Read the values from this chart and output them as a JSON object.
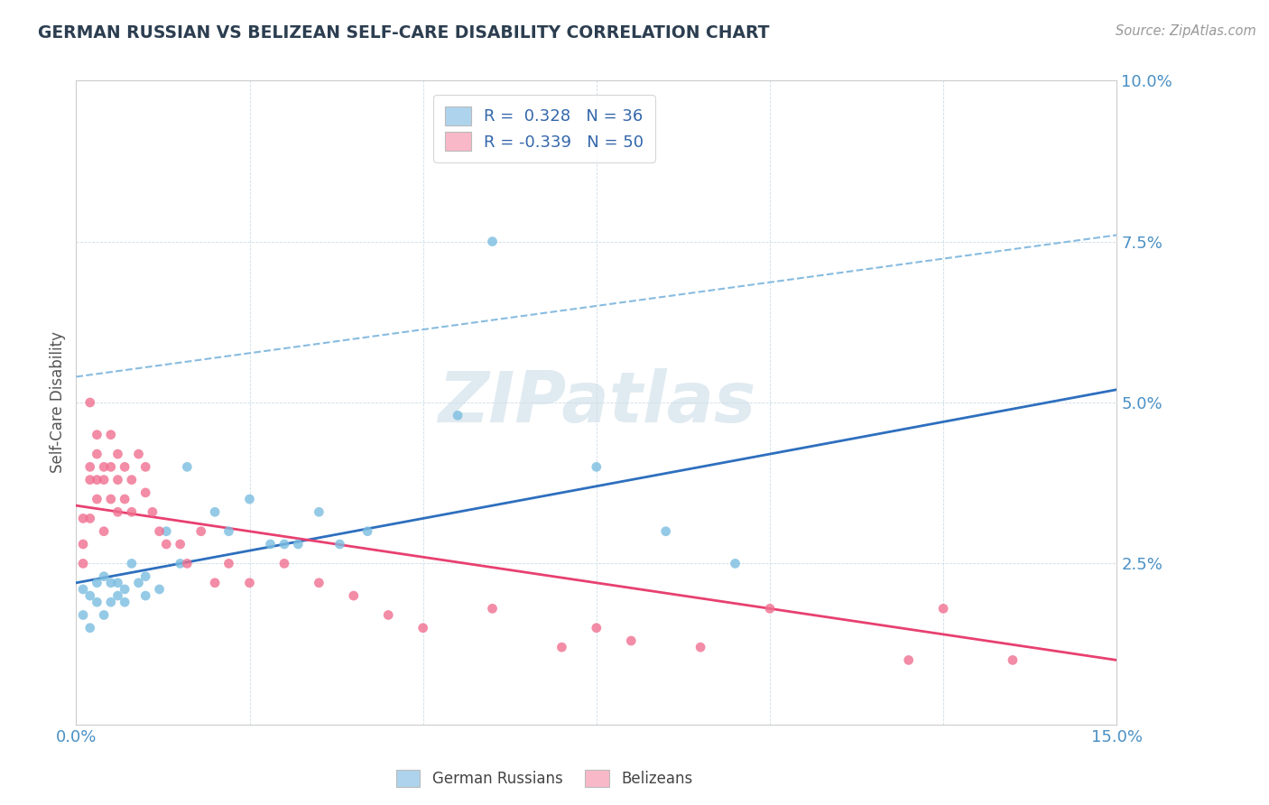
{
  "title": "GERMAN RUSSIAN VS BELIZEAN SELF-CARE DISABILITY CORRELATION CHART",
  "source_text": "Source: ZipAtlas.com",
  "ylabel": "Self-Care Disability",
  "xlim": [
    0.0,
    0.15
  ],
  "ylim": [
    0.0,
    0.1
  ],
  "xtick_positions": [
    0.0,
    0.025,
    0.05,
    0.075,
    0.1,
    0.125,
    0.15
  ],
  "ytick_positions": [
    0.0,
    0.025,
    0.05,
    0.075,
    0.1
  ],
  "xticklabels": [
    "0.0%",
    "",
    "",
    "",
    "",
    "",
    "15.0%"
  ],
  "yticklabels": [
    "",
    "2.5%",
    "5.0%",
    "7.5%",
    "10.0%"
  ],
  "color_blue": "#7bbde0",
  "color_pink": "#f07090",
  "color_blue_fill": "#aed4ed",
  "color_pink_fill": "#f9b8c8",
  "background_color": "#ffffff",
  "grid_color": "#ccdde8",
  "watermark_text": "ZIPatlas",
  "tick_color": "#4a90c4",
  "axis_color": "#cccccc",
  "blue_line_color": "#2e6fbe",
  "pink_line_color": "#e84070",
  "dash_line_color": "#88bce0",
  "blue_trend": [
    0.0,
    0.15,
    0.022,
    0.052
  ],
  "pink_trend": [
    0.0,
    0.15,
    0.034,
    0.01
  ],
  "dash_line": [
    0.0,
    0.15,
    0.054,
    0.076
  ],
  "german_russian_x": [
    0.001,
    0.001,
    0.002,
    0.002,
    0.003,
    0.003,
    0.004,
    0.004,
    0.005,
    0.005,
    0.006,
    0.006,
    0.007,
    0.007,
    0.008,
    0.009,
    0.01,
    0.01,
    0.012,
    0.013,
    0.015,
    0.016,
    0.02,
    0.022,
    0.025,
    0.028,
    0.03,
    0.032,
    0.035,
    0.038,
    0.042,
    0.055,
    0.06,
    0.075,
    0.085,
    0.095
  ],
  "german_russian_y": [
    0.021,
    0.017,
    0.02,
    0.015,
    0.022,
    0.019,
    0.023,
    0.017,
    0.022,
    0.019,
    0.022,
    0.02,
    0.021,
    0.019,
    0.025,
    0.022,
    0.023,
    0.02,
    0.021,
    0.03,
    0.025,
    0.04,
    0.033,
    0.03,
    0.035,
    0.028,
    0.028,
    0.028,
    0.033,
    0.028,
    0.03,
    0.048,
    0.075,
    0.04,
    0.03,
    0.025
  ],
  "belizean_x": [
    0.001,
    0.001,
    0.001,
    0.002,
    0.002,
    0.002,
    0.002,
    0.003,
    0.003,
    0.003,
    0.003,
    0.004,
    0.004,
    0.004,
    0.005,
    0.005,
    0.005,
    0.006,
    0.006,
    0.006,
    0.007,
    0.007,
    0.008,
    0.008,
    0.009,
    0.01,
    0.01,
    0.011,
    0.012,
    0.013,
    0.015,
    0.016,
    0.018,
    0.02,
    0.022,
    0.025,
    0.03,
    0.035,
    0.04,
    0.045,
    0.05,
    0.06,
    0.07,
    0.075,
    0.08,
    0.09,
    0.1,
    0.12,
    0.125,
    0.135
  ],
  "belizean_y": [
    0.032,
    0.028,
    0.025,
    0.04,
    0.038,
    0.032,
    0.05,
    0.042,
    0.038,
    0.035,
    0.045,
    0.04,
    0.038,
    0.03,
    0.045,
    0.04,
    0.035,
    0.042,
    0.038,
    0.033,
    0.04,
    0.035,
    0.038,
    0.033,
    0.042,
    0.04,
    0.036,
    0.033,
    0.03,
    0.028,
    0.028,
    0.025,
    0.03,
    0.022,
    0.025,
    0.022,
    0.025,
    0.022,
    0.02,
    0.017,
    0.015,
    0.018,
    0.012,
    0.015,
    0.013,
    0.012,
    0.018,
    0.01,
    0.018,
    0.01
  ]
}
